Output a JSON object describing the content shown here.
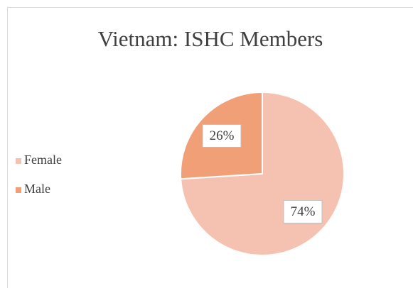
{
  "chart_data": {
    "type": "pie",
    "title": "Vietnam: ISHC Members",
    "categories": [
      "Female",
      "Male"
    ],
    "values": [
      74,
      26
    ],
    "value_labels": [
      "74%",
      "26%"
    ],
    "colors": [
      "#f5c1b0",
      "#f09f77"
    ],
    "legend": "left"
  }
}
